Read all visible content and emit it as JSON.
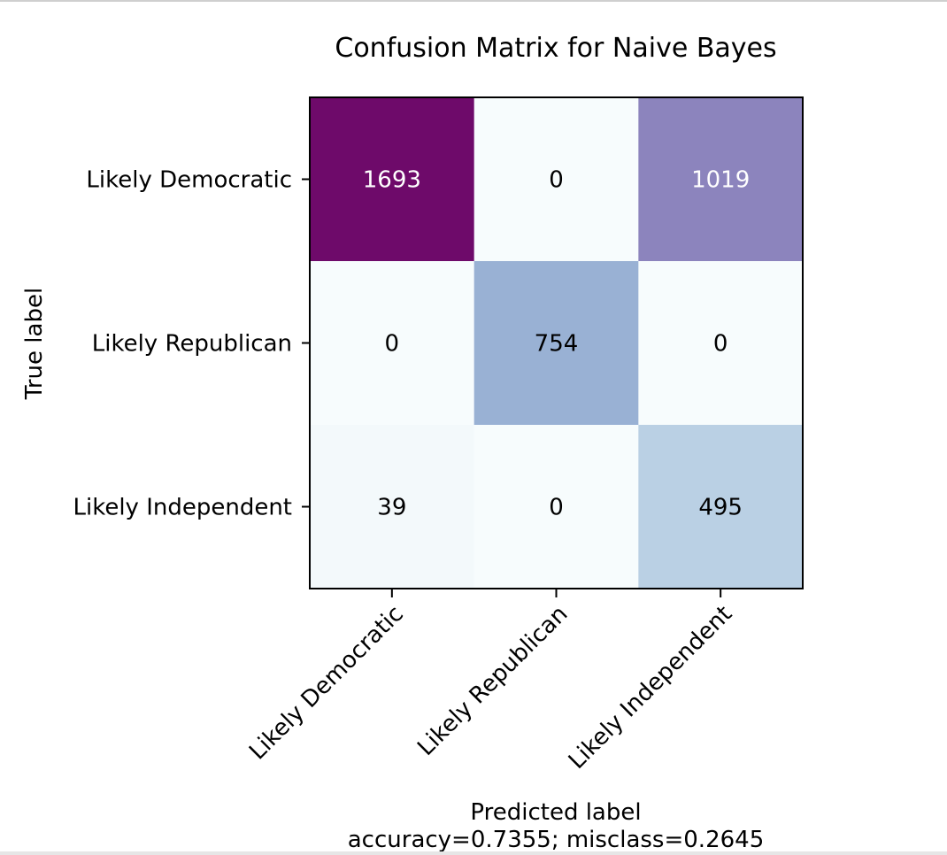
{
  "chart_data": {
    "type": "heatmap",
    "title": "Confusion Matrix for Naive Bayes",
    "xlabel": "Predicted label",
    "xlabel_note": "accuracy=0.7355; misclass=0.2645",
    "ylabel": "True label",
    "x_categories": [
      "Likely Democratic",
      "Likely Republican",
      "Likely Independent"
    ],
    "y_categories": [
      "Likely Democratic",
      "Likely Republican",
      "Likely Independent"
    ],
    "values": [
      [
        1693,
        0,
        1019
      ],
      [
        0,
        754,
        0
      ],
      [
        39,
        0,
        495
      ]
    ],
    "colormap": "BuPu",
    "colors": {
      "dark_text": "#000000",
      "light_text": "#ffffff",
      "frame": "#000000"
    }
  }
}
